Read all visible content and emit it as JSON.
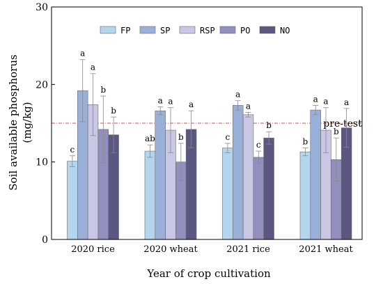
{
  "chart_data": {
    "type": "bar",
    "title": "",
    "xlabel": "Year of crop cultivation",
    "ylabel_lines": [
      "Soil available phosphorus",
      "(mg/kg)"
    ],
    "ylim": [
      0,
      30
    ],
    "yticks": [
      "0",
      "10",
      "20",
      "30"
    ],
    "categories": [
      "2020 rice",
      "2020 wheat",
      "2021 rice",
      "2021 wheat"
    ],
    "legend_position": "top",
    "reference_line": {
      "value": 15,
      "label": "pre-test",
      "color": "#e34a4a"
    },
    "series": [
      {
        "name": "FP",
        "color": "#b3d5ee",
        "values": [
          10.1,
          11.4,
          11.8,
          11.3
        ],
        "errors": [
          0.7,
          0.8,
          0.6,
          0.5
        ],
        "letters": [
          "c",
          "ab",
          "c",
          "b"
        ]
      },
      {
        "name": "SP",
        "color": "#9ab0d8",
        "values": [
          19.2,
          16.6,
          17.3,
          16.7
        ],
        "errors": [
          4.0,
          0.5,
          0.6,
          0.6
        ],
        "letters": [
          "a",
          "a",
          "a",
          "a"
        ]
      },
      {
        "name": "RSP",
        "color": "#c9c7e3",
        "values": [
          17.4,
          14.1,
          16.1,
          14.1
        ],
        "errors": [
          4.0,
          2.9,
          0.3,
          2.9
        ],
        "letters": [
          "a",
          "a",
          "a",
          "a"
        ]
      },
      {
        "name": "PO",
        "color": "#928fbf",
        "values": [
          14.2,
          10.0,
          10.6,
          10.3
        ],
        "errors": [
          4.3,
          2.4,
          0.8,
          2.8
        ],
        "letters": [
          "b",
          "b",
          "c",
          "b"
        ]
      },
      {
        "name": "NO",
        "color": "#5a5780",
        "values": [
          13.5,
          14.2,
          13.1,
          14.4
        ],
        "errors": [
          2.3,
          2.4,
          0.8,
          2.5
        ],
        "letters": [
          "b",
          "a",
          "b",
          "a"
        ]
      }
    ]
  }
}
